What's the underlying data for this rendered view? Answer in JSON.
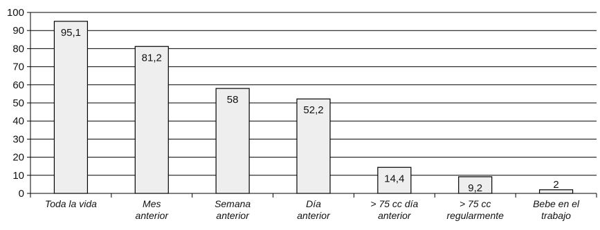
{
  "chart_data": {
    "type": "bar",
    "title": "",
    "xlabel": "",
    "ylabel": "",
    "ylim": [
      0,
      100
    ],
    "yticks": [
      0,
      10,
      20,
      30,
      40,
      50,
      60,
      70,
      80,
      90,
      100
    ],
    "grid": true,
    "bar_color": "#eeeeee",
    "categories": [
      [
        "Toda la vida"
      ],
      [
        "Mes",
        "anterior"
      ],
      [
        "Semana",
        "anterior"
      ],
      [
        "Día",
        "anterior"
      ],
      [
        "> 75 cc día",
        "anterior"
      ],
      [
        "> 75 cc",
        "regularmente"
      ],
      [
        "Bebe en el",
        "trabajo"
      ]
    ],
    "values": [
      95.1,
      81.2,
      58,
      52.2,
      14.4,
      9.2,
      2
    ],
    "value_labels": [
      "95,1",
      "81,2",
      "58",
      "52,2",
      "14,4",
      "9,2",
      "2"
    ]
  }
}
